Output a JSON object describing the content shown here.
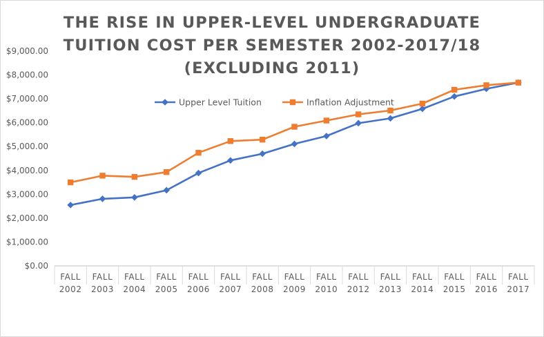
{
  "chart_data": {
    "type": "line",
    "title_lines": [
      "THE RISE IN UPPER-LEVEL UNDERGRADUATE",
      "TUITION COST PER SEMESTER 2002-2017/18",
      "(EXCLUDING 2011)"
    ],
    "xlabel": "",
    "ylabel": "",
    "categories": [
      [
        "FALL",
        "2002"
      ],
      [
        "FALL",
        "2003"
      ],
      [
        "FALL",
        "2004"
      ],
      [
        "FALL",
        "2005"
      ],
      [
        "FALL",
        "2006"
      ],
      [
        "FALL",
        "2007"
      ],
      [
        "FALL",
        "2008"
      ],
      [
        "FALL",
        "2009"
      ],
      [
        "FALL",
        "2010"
      ],
      [
        "FALL",
        "2012"
      ],
      [
        "FALL",
        "2013"
      ],
      [
        "FALL",
        "2014"
      ],
      [
        "FALL",
        "2015"
      ],
      [
        "FALL",
        "2016"
      ],
      [
        "FALL",
        "2017"
      ]
    ],
    "ylim": [
      0,
      9000
    ],
    "yticks": [
      0,
      1000,
      2000,
      3000,
      4000,
      5000,
      6000,
      7000,
      8000,
      9000
    ],
    "ytick_labels": [
      "$0.00",
      "$1,000.00",
      "$2,000.00",
      "$3,000.00",
      "$4,000.00",
      "$5,000.00",
      "$6,000.00",
      "$7,000.00",
      "$8,000.00",
      "$9,000.00"
    ],
    "legend_position": "top-center",
    "series": [
      {
        "name": "Upper Level Tuition",
        "color": "#4472C4",
        "marker": "diamond",
        "values": [
          2550,
          2810,
          2870,
          3170,
          3890,
          4420,
          4700,
          5110,
          5440,
          5980,
          6180,
          6580,
          7100,
          7420,
          7680
        ]
      },
      {
        "name": "Inflation Adjustment",
        "color": "#ED7D31",
        "marker": "square",
        "values": [
          3500,
          3780,
          3730,
          3930,
          4740,
          5230,
          5290,
          5830,
          6090,
          6350,
          6510,
          6800,
          7380,
          7570,
          7680
        ]
      }
    ]
  }
}
